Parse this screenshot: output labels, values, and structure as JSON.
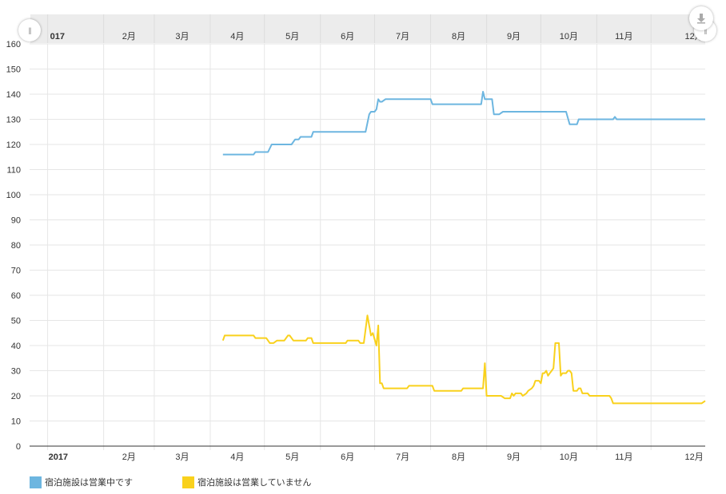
{
  "chart_data": {
    "type": "line",
    "y_ticks": [
      "0",
      "10",
      "20",
      "30",
      "40",
      "50",
      "60",
      "70",
      "80",
      "90",
      "100",
      "110",
      "120",
      "130",
      "140",
      "150",
      "160"
    ],
    "ylim": [
      0,
      160
    ],
    "x_tick_labels": [
      "2017",
      "2月",
      "3月",
      "4月",
      "5月",
      "6月",
      "7月",
      "8月",
      "9月",
      "10月",
      "11月",
      "12月"
    ],
    "x_tick_dates": [
      "2017-01-01",
      "2017-02-01",
      "2017-03-01",
      "2017-04-01",
      "2017-05-01",
      "2017-06-01",
      "2017-07-01",
      "2017-08-01",
      "2017-09-01",
      "2017-10-01",
      "2017-11-01",
      "2017-12-01"
    ],
    "xlim": [
      "2016-12-22",
      "2017-12-31"
    ],
    "grid": true,
    "legend_position": "bottom-left",
    "series": [
      {
        "name": "宿泊施設は営業中です",
        "color": "#6db6e0",
        "points": [
          [
            "2017-04-08",
            116
          ],
          [
            "2017-04-25",
            116
          ],
          [
            "2017-04-26",
            117
          ],
          [
            "2017-05-03",
            117
          ],
          [
            "2017-05-05",
            120
          ],
          [
            "2017-05-16",
            120
          ],
          [
            "2017-05-18",
            122
          ],
          [
            "2017-05-20",
            122
          ],
          [
            "2017-05-21",
            123
          ],
          [
            "2017-05-27",
            123
          ],
          [
            "2017-05-28",
            125
          ],
          [
            "2017-06-26",
            125
          ],
          [
            "2017-06-28",
            132
          ],
          [
            "2017-06-29",
            133
          ],
          [
            "2017-07-01",
            133
          ],
          [
            "2017-07-02",
            134
          ],
          [
            "2017-07-03",
            138
          ],
          [
            "2017-07-04",
            137
          ],
          [
            "2017-07-05",
            137
          ],
          [
            "2017-07-07",
            138
          ],
          [
            "2017-08-01",
            138
          ],
          [
            "2017-08-02",
            136
          ],
          [
            "2017-08-29",
            136
          ],
          [
            "2017-08-30",
            141
          ],
          [
            "2017-08-31",
            138
          ],
          [
            "2017-09-04",
            138
          ],
          [
            "2017-09-05",
            132
          ],
          [
            "2017-09-08",
            132
          ],
          [
            "2017-09-10",
            133
          ],
          [
            "2017-10-15",
            133
          ],
          [
            "2017-10-17",
            128
          ],
          [
            "2017-10-21",
            128
          ],
          [
            "2017-10-22",
            130
          ],
          [
            "2017-11-10",
            130
          ],
          [
            "2017-11-11",
            131
          ],
          [
            "2017-11-12",
            130
          ],
          [
            "2017-12-31",
            130
          ]
        ]
      },
      {
        "name": "宿泊施設は営業していません",
        "color": "#f9d11c",
        "points": [
          [
            "2017-04-08",
            42
          ],
          [
            "2017-04-09",
            44
          ],
          [
            "2017-04-25",
            44
          ],
          [
            "2017-04-26",
            43
          ],
          [
            "2017-05-02",
            43
          ],
          [
            "2017-05-04",
            41
          ],
          [
            "2017-05-06",
            41
          ],
          [
            "2017-05-08",
            42
          ],
          [
            "2017-05-12",
            42
          ],
          [
            "2017-05-14",
            44
          ],
          [
            "2017-05-15",
            44
          ],
          [
            "2017-05-17",
            42
          ],
          [
            "2017-05-24",
            42
          ],
          [
            "2017-05-25",
            43
          ],
          [
            "2017-05-27",
            43
          ],
          [
            "2017-05-28",
            41
          ],
          [
            "2017-06-15",
            41
          ],
          [
            "2017-06-16",
            42
          ],
          [
            "2017-06-22",
            42
          ],
          [
            "2017-06-23",
            41
          ],
          [
            "2017-06-25",
            41
          ],
          [
            "2017-06-27",
            52
          ],
          [
            "2017-06-29",
            44
          ],
          [
            "2017-06-30",
            45
          ],
          [
            "2017-07-02",
            40
          ],
          [
            "2017-07-03",
            48
          ],
          [
            "2017-07-04",
            25
          ],
          [
            "2017-07-05",
            25
          ],
          [
            "2017-07-06",
            23
          ],
          [
            "2017-07-19",
            23
          ],
          [
            "2017-07-20",
            24
          ],
          [
            "2017-08-02",
            24
          ],
          [
            "2017-08-03",
            22
          ],
          [
            "2017-08-18",
            22
          ],
          [
            "2017-08-19",
            23
          ],
          [
            "2017-08-30",
            23
          ],
          [
            "2017-08-31",
            33
          ],
          [
            "2017-09-01",
            20
          ],
          [
            "2017-09-09",
            20
          ],
          [
            "2017-09-11",
            19
          ],
          [
            "2017-09-14",
            19
          ],
          [
            "2017-09-15",
            21
          ],
          [
            "2017-09-16",
            20
          ],
          [
            "2017-09-17",
            21
          ],
          [
            "2017-09-20",
            21
          ],
          [
            "2017-09-21",
            20
          ],
          [
            "2017-09-23",
            21
          ],
          [
            "2017-09-24",
            22
          ],
          [
            "2017-09-26",
            23
          ],
          [
            "2017-09-27",
            24
          ],
          [
            "2017-09-28",
            26
          ],
          [
            "2017-09-30",
            26
          ],
          [
            "2017-10-01",
            25
          ],
          [
            "2017-10-02",
            29
          ],
          [
            "2017-10-03",
            29
          ],
          [
            "2017-10-04",
            30
          ],
          [
            "2017-10-05",
            28
          ],
          [
            "2017-10-06",
            29
          ],
          [
            "2017-10-07",
            30
          ],
          [
            "2017-10-08",
            31
          ],
          [
            "2017-10-09",
            41
          ],
          [
            "2017-10-11",
            41
          ],
          [
            "2017-10-12",
            28
          ],
          [
            "2017-10-13",
            29
          ],
          [
            "2017-10-15",
            29
          ],
          [
            "2017-10-16",
            30
          ],
          [
            "2017-10-17",
            30
          ],
          [
            "2017-10-18",
            29
          ],
          [
            "2017-10-19",
            22
          ],
          [
            "2017-10-21",
            22
          ],
          [
            "2017-10-22",
            23
          ],
          [
            "2017-10-23",
            23
          ],
          [
            "2017-10-24",
            21
          ],
          [
            "2017-10-27",
            21
          ],
          [
            "2017-10-28",
            20
          ],
          [
            "2017-11-08",
            20
          ],
          [
            "2017-11-09",
            19
          ],
          [
            "2017-11-10",
            17
          ],
          [
            "2017-12-29",
            17
          ],
          [
            "2017-12-31",
            18
          ]
        ]
      }
    ]
  },
  "navigator": {
    "tick_labels": [
      "017",
      "2月",
      "3月",
      "4月",
      "5月",
      "6月",
      "7月",
      "8月",
      "9月",
      "10月",
      "11月",
      "12月"
    ],
    "left_handle_glyph": "||",
    "right_handle_glyph": "||"
  },
  "export_icon": "download-icon",
  "colors": {
    "grid": "#e6e6e6",
    "axis": "#333333",
    "navigator_bg": "#ececec"
  }
}
